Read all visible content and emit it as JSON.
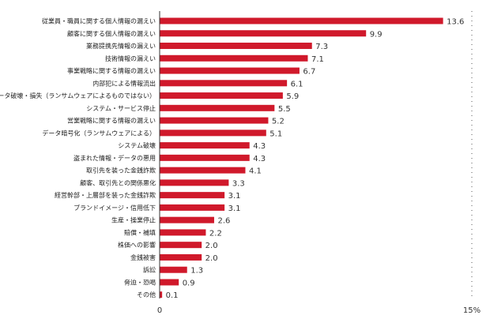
{
  "chart_data": {
    "type": "bar",
    "orientation": "horizontal",
    "categories": [
      "従業員・職員に関する個人情報の漏えい",
      "顧客に関する個人情報の漏えい",
      "業務提携先情報の漏えい",
      "技術情報の漏えい",
      "事業戦略に関する情報の漏えい",
      "内部犯による情報流出",
      "データ破壊・損失（ランサムウェアによるものではない）",
      "システム・サービス停止",
      "営業戦略に関する情報の漏えい",
      "データ暗号化（ランサムウェアによる）",
      "システム破壊",
      "盗まれた情報・データの悪用",
      "取引先を装った金銭詐欺",
      "顧客、取引先との関係悪化",
      "経営幹部・上層部を装った金銭詐欺",
      "ブランドイメージ・信用低下",
      "生産・操業停止",
      "賠償・補填",
      "株価への影響",
      "金銭被害",
      "訴訟",
      "脅迫・恐喝",
      "その他"
    ],
    "values": [
      13.6,
      9.9,
      7.3,
      7.1,
      6.7,
      6.1,
      5.9,
      5.5,
      5.2,
      5.1,
      4.3,
      4.3,
      4.1,
      3.3,
      3.1,
      3.1,
      2.6,
      2.2,
      2.0,
      2.0,
      1.3,
      0.9,
      0.1
    ],
    "value_labels": [
      "13.6",
      "9.9",
      "7.3",
      "7.1",
      "6.7",
      "6.1",
      "5.9",
      "5.5",
      "5.2",
      "5.1",
      "4.3",
      "4.3",
      "4.1",
      "3.3",
      "3.1",
      "3.1",
      "2.6",
      "2.2",
      "2.0",
      "2.0",
      "1.3",
      "0.9",
      "0.1"
    ],
    "xlim": [
      0,
      15
    ],
    "x_ticks": [
      "0",
      "15%"
    ],
    "title": "",
    "xlabel": "",
    "ylabel": "",
    "bar_color": "#d0192b",
    "grid": false,
    "legend": "none"
  }
}
